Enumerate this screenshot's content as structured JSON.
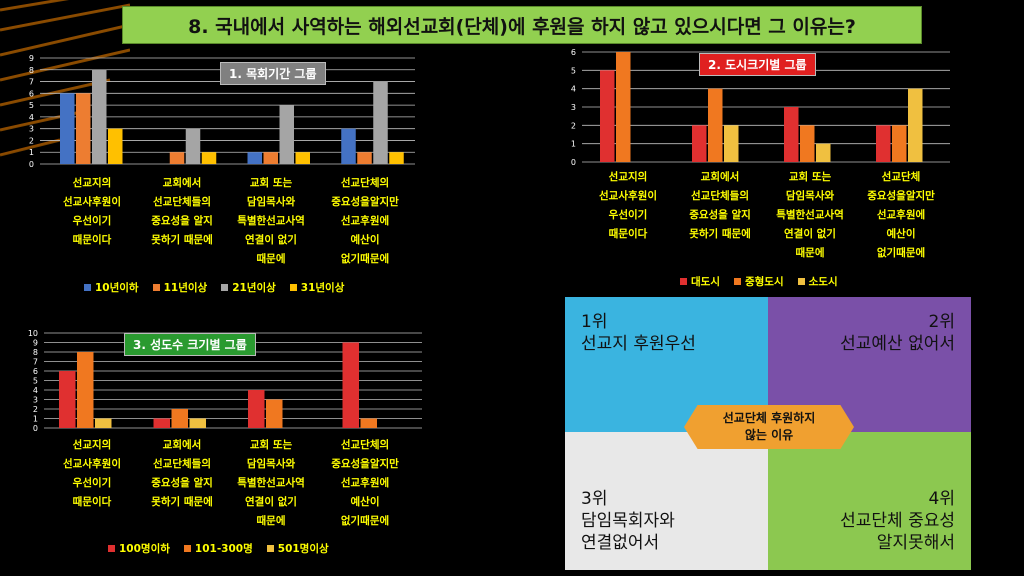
{
  "title": "8. 국내에서 사역하는 해외선교회(단체)에 후원을 하지 않고 있으시다면 그 이유는?",
  "categories": [
    [
      "선교지의",
      "선교사후원이",
      "우선이기",
      "때문이다"
    ],
    [
      "교회에서",
      "선교단체들의",
      "중요성을 알지",
      "못하기 때문에"
    ],
    [
      "교회 또는",
      "담임목사와",
      "특별한선교사역",
      "연결이 없기",
      "때문에"
    ],
    [
      "선교단체의",
      "중요성을알지만",
      "선교후원에",
      "예산이",
      "없기때문에"
    ]
  ],
  "categories_c2": [
    [
      "선교지의",
      "선교사후원이",
      "우선이기",
      "때문이다"
    ],
    [
      "교회에서",
      "선교단체들의",
      "중요성을 알지",
      "못하기 때문에"
    ],
    [
      "교회 또는",
      "담임목사와",
      "특별한선교사역",
      "연결이 없기",
      "때문에"
    ],
    [
      "선교단체",
      "중요성을알지만",
      "선교후원에",
      "예산이",
      "없기때문에"
    ]
  ],
  "chart_data": [
    {
      "type": "bar",
      "title": "1. 목회기간 그룹",
      "categories": [
        "선교지의 선교사후원이 우선이기 때문이다",
        "교회에서 선교단체들의 중요성을 알지 못하기 때문에",
        "교회 또는 담임목사와 특별한선교사역 연결이 없기 때문에",
        "선교단체의 중요성을알지만 선교후원에 예산이 없기때문에"
      ],
      "series": [
        {
          "name": "10년이하",
          "color": "#4472c4",
          "values": [
            6,
            0,
            1,
            3
          ]
        },
        {
          "name": "11년이상",
          "color": "#ed7d31",
          "values": [
            6,
            1,
            1,
            1
          ]
        },
        {
          "name": "21년이상",
          "color": "#a5a5a5",
          "values": [
            8,
            3,
            5,
            7
          ]
        },
        {
          "name": "31년이상",
          "color": "#ffc000",
          "values": [
            3,
            1,
            1,
            1
          ]
        }
      ],
      "ylim": [
        0,
        9
      ],
      "yticks": [
        "0",
        "1",
        "2",
        "3",
        "4",
        "5",
        "6",
        "7",
        "8",
        "9"
      ],
      "grid": true,
      "legend": "bottom"
    },
    {
      "type": "bar",
      "title": "2. 도시크기별 그룹",
      "categories": [
        "선교지의 선교사후원이 우선이기 때문이다",
        "교회에서 선교단체들의 중요성을 알지 못하기 때문에",
        "교회 또는 담임목사와 특별한선교사역 연결이 없기 때문에",
        "선교단체 중요성을알지만 선교후원에 예산이 없기때문에"
      ],
      "series": [
        {
          "name": "대도시",
          "color": "#e03030",
          "values": [
            5,
            2,
            3,
            2
          ]
        },
        {
          "name": "중형도시",
          "color": "#f07820",
          "values": [
            6,
            4,
            2,
            2
          ]
        },
        {
          "name": "소도시",
          "color": "#f0c040",
          "values": [
            0,
            2,
            1,
            4
          ]
        }
      ],
      "ylim": [
        0,
        6
      ],
      "yticks": [
        "0",
        "1",
        "2",
        "3",
        "4",
        "5",
        "6"
      ],
      "grid": true,
      "legend": "bottom"
    },
    {
      "type": "bar",
      "title": "3. 성도수 크기별 그룹",
      "categories": [
        "선교지의 선교사후원이 우선이기 때문이다",
        "교회에서 선교단체들의 중요성을 알지 못하기 때문에",
        "교회 또는 담임목사와 특별한선교사역 연결이 없기 때문에",
        "선교단체의 중요성을알지만 선교후원에 예산이 없기때문에"
      ],
      "series": [
        {
          "name": "100명이하",
          "color": "#e03030",
          "values": [
            6,
            1,
            4,
            9
          ]
        },
        {
          "name": "101-300명",
          "color": "#f07820",
          "values": [
            8,
            2,
            3,
            1
          ]
        },
        {
          "name": "501명이상",
          "color": "#f0c040",
          "values": [
            1,
            1,
            0,
            0
          ]
        }
      ],
      "ylim": [
        0,
        10
      ],
      "yticks": [
        "0",
        "1",
        "2",
        "3",
        "4",
        "5",
        "6",
        "7",
        "8",
        "9",
        "10"
      ],
      "grid": true,
      "legend": "bottom"
    }
  ],
  "ranking": {
    "center": [
      "선교단체 후원하지",
      "않는 이유"
    ],
    "q1": {
      "rank": "1위",
      "text": "선교지 후원우선",
      "color": "#3ab4e0"
    },
    "q2": {
      "rank": "2위",
      "text": "선교예산 없어서",
      "color": "#7a50a8"
    },
    "q3": {
      "rank": "3위",
      "lines": [
        "담임목회자와",
        "연결없어서"
      ],
      "color": "#e8e8e8"
    },
    "q4": {
      "rank": "4위",
      "lines": [
        "선교단체 중요성",
        "알지못해서"
      ],
      "color": "#8cc850"
    }
  }
}
